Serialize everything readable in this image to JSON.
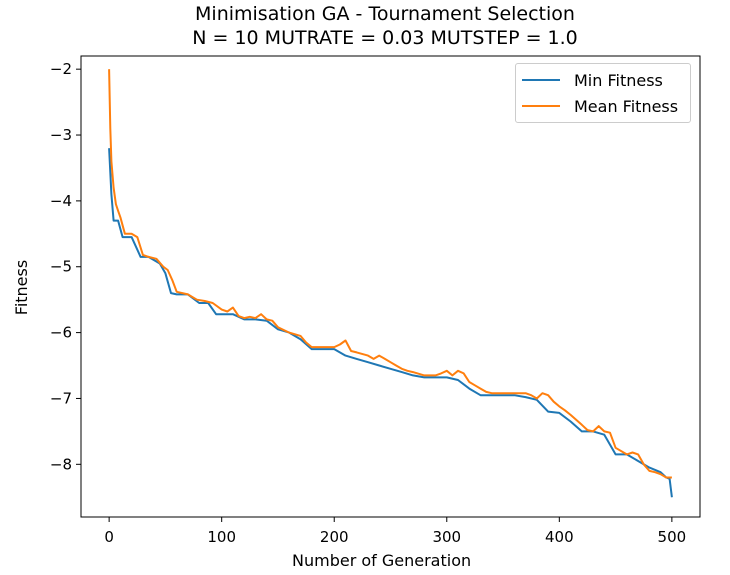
{
  "chart_data": {
    "type": "line",
    "title": "Minimisation GA - Tournament Selection",
    "subtitle": "N = 10 MUTRATE = 0.03 MUTSTEP = 1.0",
    "xlabel": "Number of Generation",
    "ylabel": "Fitness",
    "xlim": [
      -25,
      525
    ],
    "ylim": [
      -8.8,
      -1.8
    ],
    "xticks": [
      0,
      100,
      200,
      300,
      400,
      500
    ],
    "yticks": [
      -2,
      -3,
      -4,
      -5,
      -6,
      -7,
      -8
    ],
    "xtick_labels": [
      "0",
      "100",
      "200",
      "300",
      "400",
      "500"
    ],
    "ytick_labels": [
      "−2",
      "−3",
      "−4",
      "−5",
      "−6",
      "−7",
      "−8"
    ],
    "grid": false,
    "legend_position": "top-right",
    "series": [
      {
        "name": "Min Fitness",
        "color": "#1f77b4",
        "x": [
          0,
          2,
          4,
          8,
          12,
          20,
          28,
          35,
          45,
          50,
          55,
          60,
          70,
          80,
          88,
          95,
          100,
          110,
          120,
          130,
          140,
          150,
          160,
          170,
          180,
          190,
          200,
          210,
          220,
          230,
          240,
          250,
          260,
          270,
          280,
          290,
          300,
          310,
          320,
          330,
          340,
          350,
          360,
          370,
          380,
          390,
          400,
          410,
          420,
          430,
          440,
          450,
          460,
          470,
          480,
          490,
          495,
          498,
          500
        ],
        "values": [
          -3.2,
          -3.9,
          -4.3,
          -4.3,
          -4.55,
          -4.55,
          -4.85,
          -4.85,
          -4.95,
          -5.1,
          -5.4,
          -5.42,
          -5.42,
          -5.55,
          -5.55,
          -5.72,
          -5.72,
          -5.72,
          -5.8,
          -5.8,
          -5.82,
          -5.95,
          -6.0,
          -6.1,
          -6.25,
          -6.25,
          -6.25,
          -6.35,
          -6.4,
          -6.45,
          -6.5,
          -6.55,
          -6.6,
          -6.65,
          -6.68,
          -6.68,
          -6.68,
          -6.72,
          -6.85,
          -6.95,
          -6.95,
          -6.95,
          -6.95,
          -6.98,
          -7.02,
          -7.2,
          -7.22,
          -7.35,
          -7.5,
          -7.5,
          -7.55,
          -7.85,
          -7.85,
          -7.95,
          -8.05,
          -8.12,
          -8.2,
          -8.22,
          -8.5
        ]
      },
      {
        "name": "Mean Fitness",
        "color": "#ff7f0e",
        "x": [
          0,
          1,
          2,
          4,
          6,
          8,
          10,
          14,
          20,
          25,
          30,
          35,
          42,
          48,
          52,
          56,
          60,
          70,
          78,
          85,
          92,
          100,
          105,
          110,
          115,
          120,
          125,
          130,
          135,
          140,
          145,
          150,
          160,
          170,
          175,
          180,
          190,
          200,
          205,
          210,
          215,
          220,
          230,
          235,
          240,
          245,
          250,
          255,
          260,
          265,
          270,
          280,
          290,
          295,
          300,
          305,
          310,
          315,
          320,
          325,
          330,
          335,
          340,
          350,
          360,
          365,
          370,
          375,
          380,
          385,
          390,
          395,
          400,
          405,
          410,
          420,
          425,
          430,
          435,
          440,
          445,
          450,
          460,
          465,
          470,
          475,
          480,
          485,
          490,
          495,
          500
        ],
        "values": [
          -2.0,
          -2.9,
          -3.4,
          -3.8,
          -4.05,
          -4.15,
          -4.25,
          -4.5,
          -4.5,
          -4.55,
          -4.82,
          -4.85,
          -4.88,
          -5.0,
          -5.05,
          -5.2,
          -5.38,
          -5.42,
          -5.5,
          -5.52,
          -5.55,
          -5.65,
          -5.68,
          -5.62,
          -5.75,
          -5.78,
          -5.76,
          -5.78,
          -5.72,
          -5.8,
          -5.82,
          -5.92,
          -6.0,
          -6.05,
          -6.15,
          -6.22,
          -6.22,
          -6.22,
          -6.18,
          -6.12,
          -6.28,
          -6.3,
          -6.35,
          -6.4,
          -6.35,
          -6.4,
          -6.45,
          -6.5,
          -6.55,
          -6.58,
          -6.6,
          -6.65,
          -6.65,
          -6.62,
          -6.58,
          -6.65,
          -6.58,
          -6.62,
          -6.75,
          -6.8,
          -6.85,
          -6.9,
          -6.92,
          -6.92,
          -6.92,
          -6.92,
          -6.92,
          -6.95,
          -7.0,
          -6.92,
          -6.95,
          -7.05,
          -7.12,
          -7.18,
          -7.25,
          -7.4,
          -7.48,
          -7.5,
          -7.42,
          -7.5,
          -7.52,
          -7.75,
          -7.85,
          -7.82,
          -7.85,
          -8.0,
          -8.1,
          -8.12,
          -8.15,
          -8.2,
          -8.2
        ]
      }
    ]
  }
}
